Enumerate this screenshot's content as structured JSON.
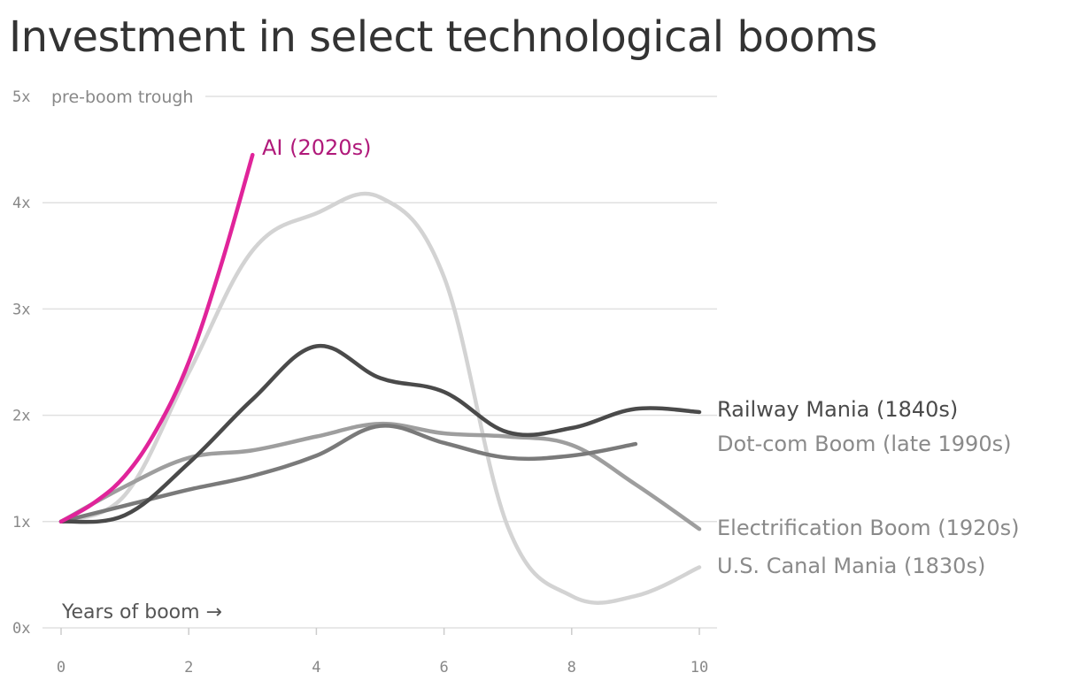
{
  "chart_data": {
    "type": "line",
    "title": "Investment in select technological booms",
    "xlabel": "Years of boom →",
    "ylabel_note": "pre-boom trough",
    "xlim": [
      0,
      10
    ],
    "ylim": [
      0,
      5
    ],
    "x_ticks": [
      0,
      2,
      4,
      6,
      8,
      10
    ],
    "x_tick_labels": [
      "0",
      "2",
      "4",
      "6",
      "8",
      "10"
    ],
    "y_ticks": [
      0,
      1,
      2,
      3,
      4,
      5
    ],
    "y_tick_labels": [
      "0x",
      "1x",
      "2x",
      "3x",
      "4x",
      "5x"
    ],
    "grid": true,
    "series": [
      {
        "name": "U.S. Canal Mania (1830s)",
        "color": "#d3d3d3",
        "x": [
          0,
          1,
          2,
          3,
          4,
          5,
          6,
          7,
          8,
          9,
          10
        ],
        "y": [
          1.0,
          1.25,
          2.4,
          3.55,
          3.9,
          4.05,
          3.3,
          0.95,
          0.3,
          0.3,
          0.57
        ]
      },
      {
        "name": "Electrification Boom (1920s)",
        "color": "#9e9e9e",
        "x": [
          0,
          1,
          2,
          3,
          4,
          5,
          6,
          7,
          8,
          9,
          10
        ],
        "y": [
          1.0,
          1.33,
          1.6,
          1.67,
          1.8,
          1.92,
          1.83,
          1.8,
          1.72,
          1.35,
          0.93
        ]
      },
      {
        "name": "Dot-com Boom (late 1990s)",
        "color": "#7a7a7a",
        "x": [
          0,
          1,
          2,
          3,
          4,
          5,
          6,
          7,
          8,
          9
        ],
        "y": [
          1.0,
          1.15,
          1.3,
          1.43,
          1.62,
          1.9,
          1.74,
          1.6,
          1.62,
          1.73
        ]
      },
      {
        "name": "Railway Mania (1840s)",
        "color": "#4a4a4a",
        "x": [
          0,
          1,
          2,
          3,
          4,
          5,
          6,
          7,
          8,
          9,
          10
        ],
        "y": [
          1.0,
          1.06,
          1.55,
          2.15,
          2.65,
          2.35,
          2.22,
          1.84,
          1.88,
          2.06,
          2.03
        ]
      },
      {
        "name": "AI (2020s)",
        "color": "#e0249a",
        "x": [
          0,
          0.5,
          1,
          1.5,
          2,
          2.5,
          3
        ],
        "y": [
          1.0,
          1.17,
          1.43,
          1.87,
          2.5,
          3.4,
          4.45
        ]
      }
    ],
    "label_colors": {
      "U.S. Canal Mania (1830s)": "#8a8a8a",
      "Electrification Boom (1920s)": "#8a8a8a",
      "Dot-com Boom (late 1990s)": "#8a8a8a",
      "Railway Mania (1840s)": "#4a4a4a",
      "AI (2020s)": "#b0197a"
    }
  }
}
